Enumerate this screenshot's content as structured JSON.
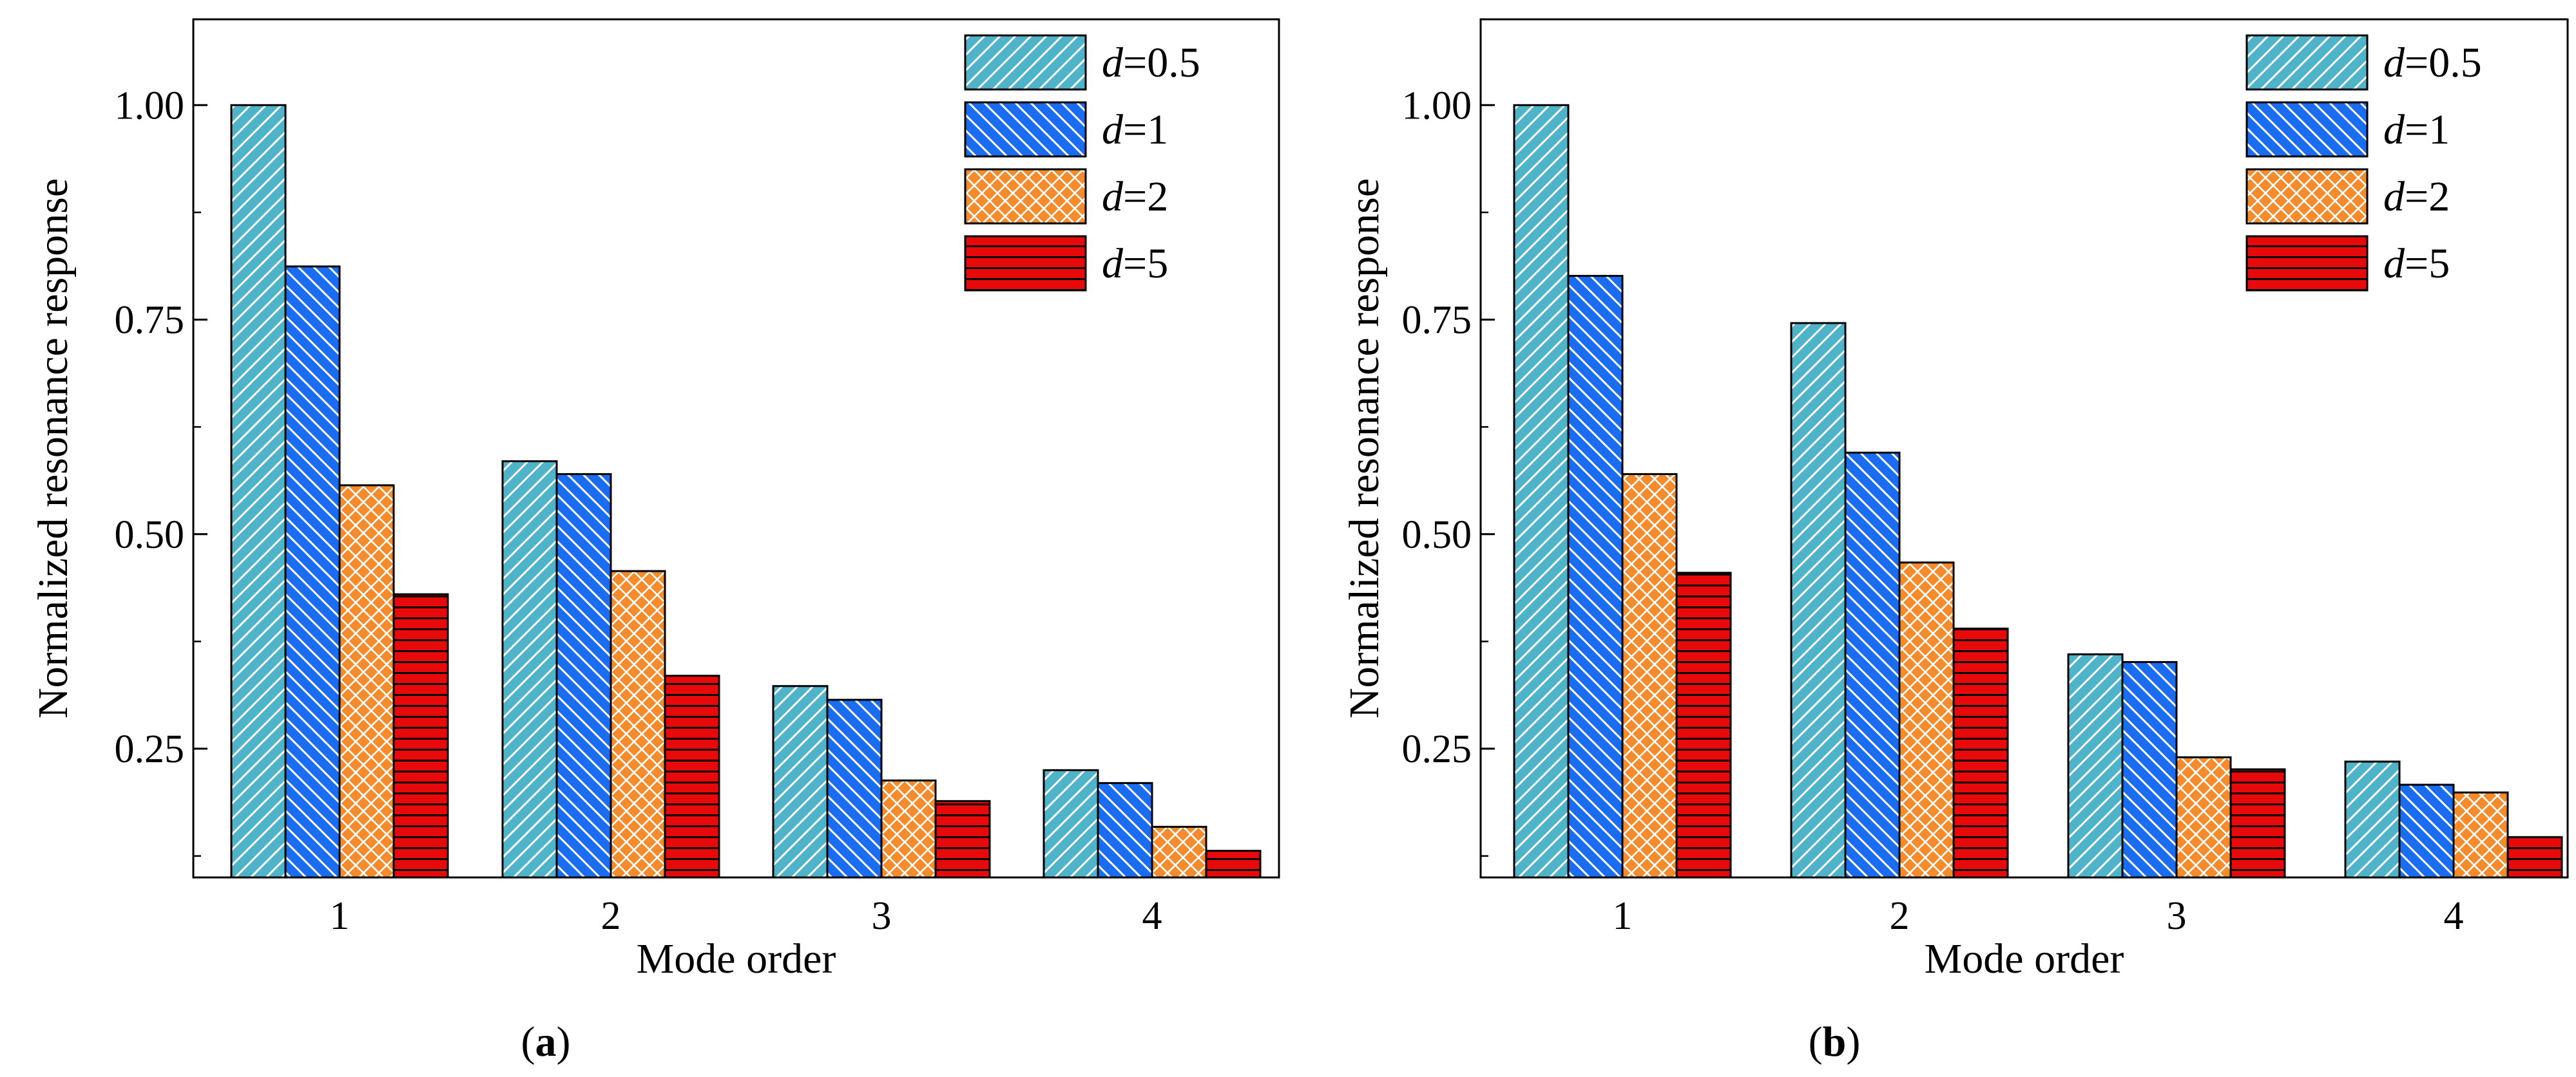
{
  "figure": {
    "panel_labels": [
      "(a)",
      "(b)"
    ]
  },
  "colors": {
    "d0_5": {
      "fill": "#4fb3c9",
      "hatch": "#ffffff"
    },
    "d1": {
      "fill": "#1a6cf0",
      "hatch": "#ffffff"
    },
    "d2": {
      "fill": "#f58b2b",
      "hatch": "#ffffff"
    },
    "d5": {
      "fill": "#e80a0a",
      "hatch": "#000000"
    }
  },
  "chart_data": [
    {
      "type": "bar",
      "panel": "(a)",
      "title": "",
      "xlabel": "Mode order",
      "ylabel": "Normalized resonance response",
      "categories": [
        "1",
        "2",
        "3",
        "4"
      ],
      "ylim": [
        0.1,
        1.1
      ],
      "yticks": [
        0.25,
        0.5,
        0.75,
        1.0
      ],
      "ytick_labels": [
        "0.25",
        "0.50",
        "0.75",
        "1.00"
      ],
      "legend_position": "top-right",
      "series": [
        {
          "key": "d0_5",
          "name_var": "d",
          "name_value": "=0.5",
          "values": [
            1.0,
            0.585,
            0.323,
            0.225
          ]
        },
        {
          "key": "d1",
          "name_var": "d",
          "name_value": "=1",
          "values": [
            0.812,
            0.57,
            0.307,
            0.21
          ]
        },
        {
          "key": "d2",
          "name_var": "d",
          "name_value": "=2",
          "values": [
            0.557,
            0.457,
            0.213,
            0.159
          ]
        },
        {
          "key": "d5",
          "name_var": "d",
          "name_value": "=5",
          "values": [
            0.43,
            0.335,
            0.189,
            0.131
          ]
        }
      ]
    },
    {
      "type": "bar",
      "panel": "(b)",
      "title": "",
      "xlabel": "Mode order",
      "ylabel": "Normalized resonance response",
      "categories": [
        "1",
        "2",
        "3",
        "4"
      ],
      "ylim": [
        0.1,
        1.1
      ],
      "yticks": [
        0.25,
        0.5,
        0.75,
        1.0
      ],
      "ytick_labels": [
        "0.25",
        "0.50",
        "0.75",
        "1.00"
      ],
      "legend_position": "top-right",
      "series": [
        {
          "key": "d0_5",
          "name_var": "d",
          "name_value": "=0.5",
          "values": [
            1.0,
            0.746,
            0.36,
            0.235
          ]
        },
        {
          "key": "d1",
          "name_var": "d",
          "name_value": "=1",
          "values": [
            0.801,
            0.595,
            0.351,
            0.208
          ]
        },
        {
          "key": "d2",
          "name_var": "d",
          "name_value": "=2",
          "values": [
            0.57,
            0.467,
            0.24,
            0.199
          ]
        },
        {
          "key": "d5",
          "name_var": "d",
          "name_value": "=5",
          "values": [
            0.455,
            0.39,
            0.226,
            0.147
          ]
        }
      ]
    }
  ]
}
